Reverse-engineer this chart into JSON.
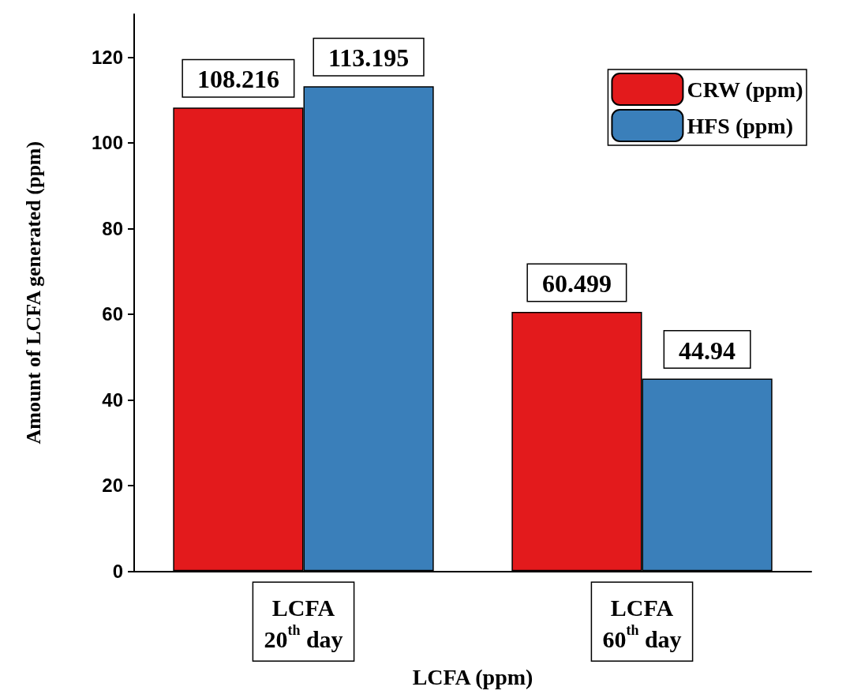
{
  "chart_data": {
    "type": "bar",
    "xlabel": "LCFA (ppm)",
    "ylabel": "Amount of LCFA generated (ppm)",
    "categories": [
      "LCFA\n20$^{th}$ day",
      "LCFA\n60$^{th}$ day"
    ],
    "series": [
      {
        "name": "CRW (ppm)",
        "color": "#e31a1c",
        "values": [
          108.216,
          60.499
        ]
      },
      {
        "name": "HFS (ppm)",
        "color": "#3a7fba",
        "values": [
          113.195,
          44.94
        ]
      }
    ],
    "ylim": [
      0,
      130
    ],
    "yticks": [
      0,
      20,
      40,
      60,
      80,
      100,
      120
    ],
    "data_labels": true,
    "legend": "top right",
    "grid": false
  }
}
